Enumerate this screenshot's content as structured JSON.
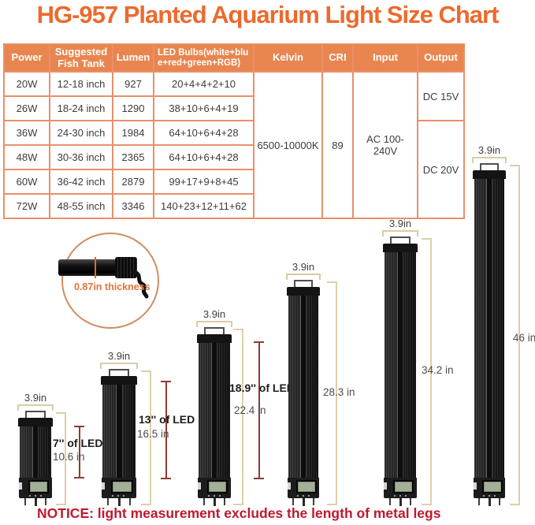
{
  "title": "HG-957 Planted Aquarium Light Size Chart",
  "table": {
    "headers": {
      "power": "Power",
      "tank": "Suggested Fish Tank",
      "lumen": "Lumen",
      "bulbs": "LED Bulbs(white+blue+red+green+RGB)",
      "kelvin": "Kelvin",
      "cri": "CRI",
      "input": "Input",
      "output": "Output"
    },
    "rows": [
      {
        "power": "20W",
        "tank": "12-18 inch",
        "lumen": "927",
        "bulbs": "20+4+4+2+10"
      },
      {
        "power": "26W",
        "tank": "18-24 inch",
        "lumen": "1290",
        "bulbs": "38+10+6+4+19"
      },
      {
        "power": "36W",
        "tank": "24-30 inch",
        "lumen": "1984",
        "bulbs": "64+10+6+4+28"
      },
      {
        "power": "48W",
        "tank": "30-36 inch",
        "lumen": "2365",
        "bulbs": "64+10+6+4+28"
      },
      {
        "power": "60W",
        "tank": "36-42 inch",
        "lumen": "2879",
        "bulbs": "99+17+9+8+45"
      },
      {
        "power": "72W",
        "tank": "48-55 inch",
        "lumen": "3346",
        "bulbs": "140+23+12+11+62"
      }
    ],
    "merged": {
      "kelvin": "6500-10000K",
      "cri": "89",
      "input": "AC 100-240V",
      "output_dc15": "DC 15V",
      "output_dc20": "DC 20V"
    }
  },
  "thickness_detail": {
    "label": "0.87in thickness"
  },
  "lights": [
    {
      "width_label": "3.9in",
      "led_length_label": "7'' of LED",
      "total_length_label": "10.6 in"
    },
    {
      "width_label": "3.9in",
      "led_length_label": "13'' of LED",
      "total_length_label": "16.5 in"
    },
    {
      "width_label": "3.9in",
      "led_length_label": "18.9'' of LED",
      "total_length_label": "22.4 in"
    },
    {
      "width_label": "3.9in",
      "total_length_label": "28.3 in"
    },
    {
      "width_label": "3.9in",
      "total_length_label": "34.2 in"
    },
    {
      "width_label": "3.9in",
      "total_length_label": "46 in"
    }
  ],
  "notice": "NOTICE: light measurement excludes the length of metal legs",
  "colors": {
    "title_orange": "#ec6a2e",
    "table_header_bg": "#e9854e",
    "table_border": "#e8906a",
    "notice_red": "#c0182e",
    "measure_line_tan": "#dccfa9",
    "measure_line_red": "#8e3b33",
    "thickness_label_orange": "#e2733c"
  }
}
